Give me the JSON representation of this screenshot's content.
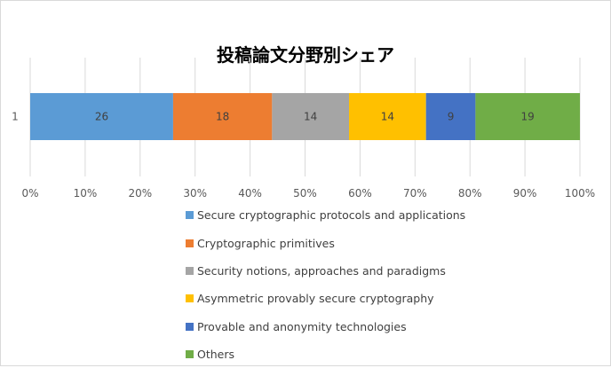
{
  "chart_data": {
    "type": "bar",
    "orientation": "horizontal",
    "stacking": "percent",
    "title": "投稿論文分野別シェア",
    "categories": [
      "1"
    ],
    "series": [
      {
        "name": "Secure cryptographic protocols and applications",
        "values": [
          26
        ],
        "color": "#5b9bd5"
      },
      {
        "name": "Cryptographic primitives",
        "values": [
          18
        ],
        "color": "#ed7d31"
      },
      {
        "name": "Security notions, approaches and paradigms",
        "values": [
          14
        ],
        "color": "#a5a5a5"
      },
      {
        "name": "Asymmetric provably secure cryptography",
        "values": [
          14
        ],
        "color": "#ffc000"
      },
      {
        "name": "Provable and anonymity technologies",
        "values": [
          9
        ],
        "color": "#4472c4"
      },
      {
        "name": "Others",
        "values": [
          19
        ],
        "color": "#70ad47"
      }
    ],
    "x_ticks": [
      "0%",
      "10%",
      "20%",
      "30%",
      "40%",
      "50%",
      "60%",
      "70%",
      "80%",
      "90%",
      "100%"
    ],
    "xlim": [
      0,
      100
    ],
    "grid": true,
    "legend_position": "bottom",
    "data_labels": true
  }
}
